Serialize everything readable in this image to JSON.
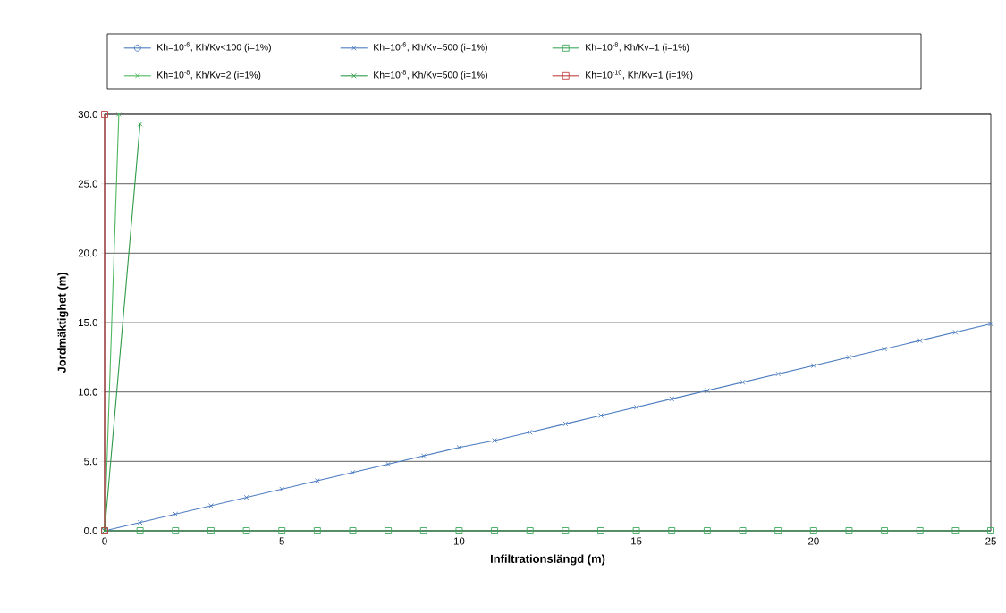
{
  "chart_data": {
    "type": "line",
    "xlabel": "Infiltrationslängd (m)",
    "ylabel": "Jordmäktighet (m)",
    "xlim": [
      0,
      25
    ],
    "xticks": [
      0,
      5,
      10,
      15,
      20,
      25
    ],
    "ylim": [
      0,
      30
    ],
    "yticks": [
      {
        "value": 0,
        "label": "0.0"
      },
      {
        "value": 5,
        "label": "5.0"
      },
      {
        "value": 10,
        "label": "10.0"
      },
      {
        "value": 15,
        "label": "15.0"
      },
      {
        "value": 20,
        "label": "20.0"
      },
      {
        "value": 25,
        "label": "25.0"
      },
      {
        "value": 30,
        "label": "30.0"
      }
    ],
    "grid": "y",
    "legend": "top",
    "line_style": "solid",
    "series": [
      {
        "name": "Kh=10$^{-6}$,  Kh/Kv<100 (i=1%)",
        "color": "#4a7ac0",
        "marker": "circle",
        "x": [
          0
        ],
        "values": [
          0
        ]
      },
      {
        "name": "Kh=10$^{-6}$,  Kh/Kv=500 (i=1%)",
        "color": "#4a7ac0",
        "marker": "cross",
        "x": [
          0,
          1,
          2,
          3,
          4,
          5,
          6,
          7,
          8,
          9,
          10,
          11,
          12,
          13,
          14,
          15,
          16,
          17,
          18,
          19,
          20,
          21,
          22,
          23,
          24,
          25
        ],
        "values": [
          0,
          0.6,
          1.2,
          1.8,
          2.4,
          3.0,
          3.6,
          4.2,
          4.8,
          5.4,
          6.0,
          6.5,
          7.1,
          7.7,
          8.3,
          8.9,
          9.5,
          10.1,
          10.7,
          11.3,
          11.9,
          12.5,
          13.1,
          13.7,
          14.3,
          14.9
        ]
      },
      {
        "name": "Kh=10$^{-8}$,  Kh/Kv=1 (i=1%)",
        "color": "#3aa85a",
        "marker": "square",
        "x": [
          0,
          1,
          2,
          3,
          4,
          5,
          6,
          7,
          8,
          9,
          10,
          11,
          12,
          13,
          14,
          15,
          16,
          17,
          18,
          19,
          20,
          21,
          22,
          23,
          24,
          25
        ],
        "values": [
          0,
          0,
          0,
          0,
          0,
          0,
          0,
          0,
          0,
          0,
          0,
          0,
          0,
          0,
          0,
          0,
          0,
          0,
          0,
          0,
          0,
          0,
          0,
          0,
          0,
          0
        ]
      },
      {
        "name": "Kh=10$^{-8}$,  Kh/Kv=2 (i=1%)",
        "color": "#4cb860",
        "marker": "cross",
        "x": [
          0,
          0.4
        ],
        "values": [
          0,
          30
        ]
      },
      {
        "name": "Kh=10$^{-8}$,  Kh/Kv=500 (i=1%)",
        "color": "#2e9a48",
        "marker": "cross",
        "x": [
          0,
          1
        ],
        "values": [
          0,
          29.3
        ]
      },
      {
        "name": "Kh=10$^{-10}$, Kh/Kv=1 (i=1%)",
        "color": "#c04040",
        "marker": "square",
        "x": [
          0,
          0
        ],
        "values": [
          0,
          30
        ]
      }
    ]
  }
}
